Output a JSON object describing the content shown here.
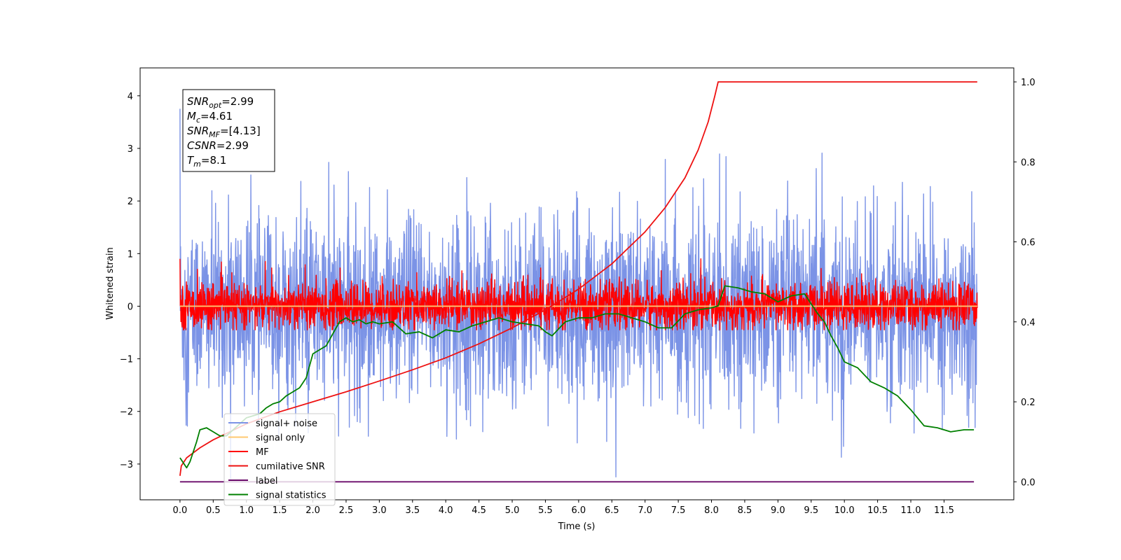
{
  "chart_data": {
    "type": "line",
    "xlabel": "Time (s)",
    "ylabel": "Whitened strain",
    "xlim": [
      -0.6,
      12.55
    ],
    "ylim": [
      -3.68,
      4.53
    ],
    "y2lim": [
      -0.045,
      1.035
    ],
    "x_ticks": [
      "0.0",
      "0.5",
      "1.0",
      "1.5",
      "2.0",
      "2.5",
      "3.0",
      "3.5",
      "4.0",
      "4.5",
      "5.0",
      "5.5",
      "6.0",
      "6.5",
      "7.0",
      "7.5",
      "8.0",
      "8.5",
      "9.0",
      "9.5",
      "10.0",
      "10.5",
      "11.0",
      "11.5"
    ],
    "y_ticks": [
      "−3",
      "−2",
      "−1",
      "0",
      "1",
      "2",
      "3",
      "4"
    ],
    "y2_ticks": [
      "0.0",
      "0.2",
      "0.4",
      "0.6",
      "0.8",
      "1.0"
    ],
    "stats_box": [
      {
        "main": "SNR",
        "sub": "opt",
        "value": "=2.99"
      },
      {
        "main": "M",
        "sub": "c",
        "value": "=4.61"
      },
      {
        "main": "SNR",
        "sub": "MF",
        "value": "=[4.13]"
      },
      {
        "main": "CSNR",
        "sub": "",
        "value": "=2.99"
      },
      {
        "main": "T",
        "sub": "m",
        "value": "=8.1"
      }
    ],
    "series": [
      {
        "name": "signal+ noise",
        "color": "#7b93e6",
        "axis": "left",
        "kind": "noise",
        "x_range": [
          0,
          12.0
        ],
        "mean": -0.05,
        "std": 0.85,
        "y_range": [
          -3.3,
          4.17
        ]
      },
      {
        "name": "signal only",
        "color": "#ffc870",
        "axis": "left",
        "kind": "flat",
        "x": [
          0,
          12.0
        ],
        "y": [
          0,
          0
        ]
      },
      {
        "name": "MF",
        "color": "#ff0000",
        "axis": "left",
        "kind": "noise",
        "x_range": [
          0,
          12.0
        ],
        "mean": 0.0,
        "std": 0.22,
        "y_range": [
          -0.45,
          1.0
        ]
      },
      {
        "name": "cumilative SNR",
        "color": "#ee1111",
        "axis": "right",
        "kind": "curve",
        "x": [
          0.0,
          0.02,
          0.1,
          0.3,
          0.5,
          1.0,
          1.5,
          2.0,
          2.5,
          3.0,
          3.5,
          4.0,
          4.5,
          5.0,
          5.5,
          6.0,
          6.5,
          7.0,
          7.3,
          7.6,
          7.8,
          7.95,
          8.05,
          8.1,
          12.0
        ],
        "y": [
          0.015,
          0.04,
          0.06,
          0.085,
          0.105,
          0.145,
          0.175,
          0.2,
          0.225,
          0.252,
          0.28,
          0.31,
          0.345,
          0.385,
          0.43,
          0.482,
          0.545,
          0.625,
          0.685,
          0.76,
          0.83,
          0.9,
          0.965,
          1.0,
          1.0
        ]
      },
      {
        "name": "label",
        "color": "#6a0a6a",
        "axis": "right",
        "kind": "flat",
        "x": [
          0,
          11.95
        ],
        "y": [
          0,
          0
        ]
      },
      {
        "name": "signal statistics",
        "color": "#008000",
        "axis": "right",
        "kind": "curve",
        "x": [
          0.0,
          0.1,
          0.15,
          0.25,
          0.3,
          0.4,
          0.5,
          0.6,
          0.7,
          0.8,
          0.9,
          1.0,
          1.1,
          1.2,
          1.3,
          1.4,
          1.5,
          1.6,
          1.7,
          1.8,
          1.9,
          2.0,
          2.1,
          2.2,
          2.3,
          2.4,
          2.5,
          2.6,
          2.7,
          2.8,
          2.9,
          3.0,
          3.2,
          3.4,
          3.6,
          3.8,
          4.0,
          4.2,
          4.4,
          4.6,
          4.8,
          5.0,
          5.2,
          5.4,
          5.5,
          5.6,
          5.8,
          6.0,
          6.2,
          6.4,
          6.6,
          6.8,
          7.0,
          7.2,
          7.4,
          7.6,
          7.8,
          8.0,
          8.1,
          8.2,
          8.4,
          8.6,
          8.8,
          9.0,
          9.2,
          9.4,
          9.6,
          9.7,
          9.8,
          9.9,
          10.0,
          10.2,
          10.4,
          10.6,
          10.8,
          11.0,
          11.2,
          11.4,
          11.5,
          11.6,
          11.8,
          11.95
        ],
        "y": [
          0.06,
          0.035,
          0.05,
          0.1,
          0.13,
          0.135,
          0.125,
          0.115,
          0.115,
          0.13,
          0.145,
          0.16,
          0.165,
          0.17,
          0.185,
          0.195,
          0.2,
          0.215,
          0.225,
          0.235,
          0.26,
          0.32,
          0.33,
          0.34,
          0.37,
          0.4,
          0.41,
          0.4,
          0.405,
          0.395,
          0.4,
          0.395,
          0.4,
          0.37,
          0.375,
          0.36,
          0.38,
          0.375,
          0.39,
          0.4,
          0.41,
          0.4,
          0.395,
          0.39,
          0.375,
          0.365,
          0.4,
          0.41,
          0.41,
          0.42,
          0.42,
          0.41,
          0.4,
          0.385,
          0.385,
          0.42,
          0.43,
          0.435,
          0.44,
          0.49,
          0.485,
          0.475,
          0.47,
          0.45,
          0.465,
          0.47,
          0.42,
          0.4,
          0.365,
          0.335,
          0.3,
          0.285,
          0.25,
          0.235,
          0.215,
          0.18,
          0.14,
          0.135,
          0.13,
          0.125,
          0.13,
          0.13
        ]
      }
    ]
  }
}
